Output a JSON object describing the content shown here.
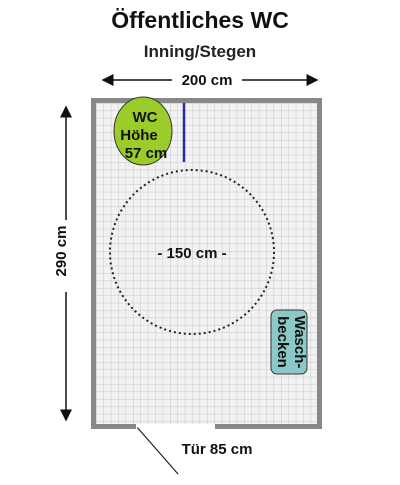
{
  "title": "Öffentliches WC",
  "subtitle": "Inning/Stegen",
  "width_label": "200 cm",
  "height_label": "290 cm",
  "turning_circle_label": "- 150 cm -",
  "wc": {
    "line1": "WC",
    "line2": "Höhe",
    "line3": "57 cm"
  },
  "sink": {
    "line1": "Wasch-",
    "line2": "becken"
  },
  "door_label": "Tür 85 cm",
  "colors": {
    "wall": "#888888",
    "floor": "#f2f2f2",
    "grid": "#c8c8c8",
    "wc_fill": "#9ccc2a",
    "sink_fill": "#8cc8c8",
    "grab_bar": "#2a2ab0"
  }
}
